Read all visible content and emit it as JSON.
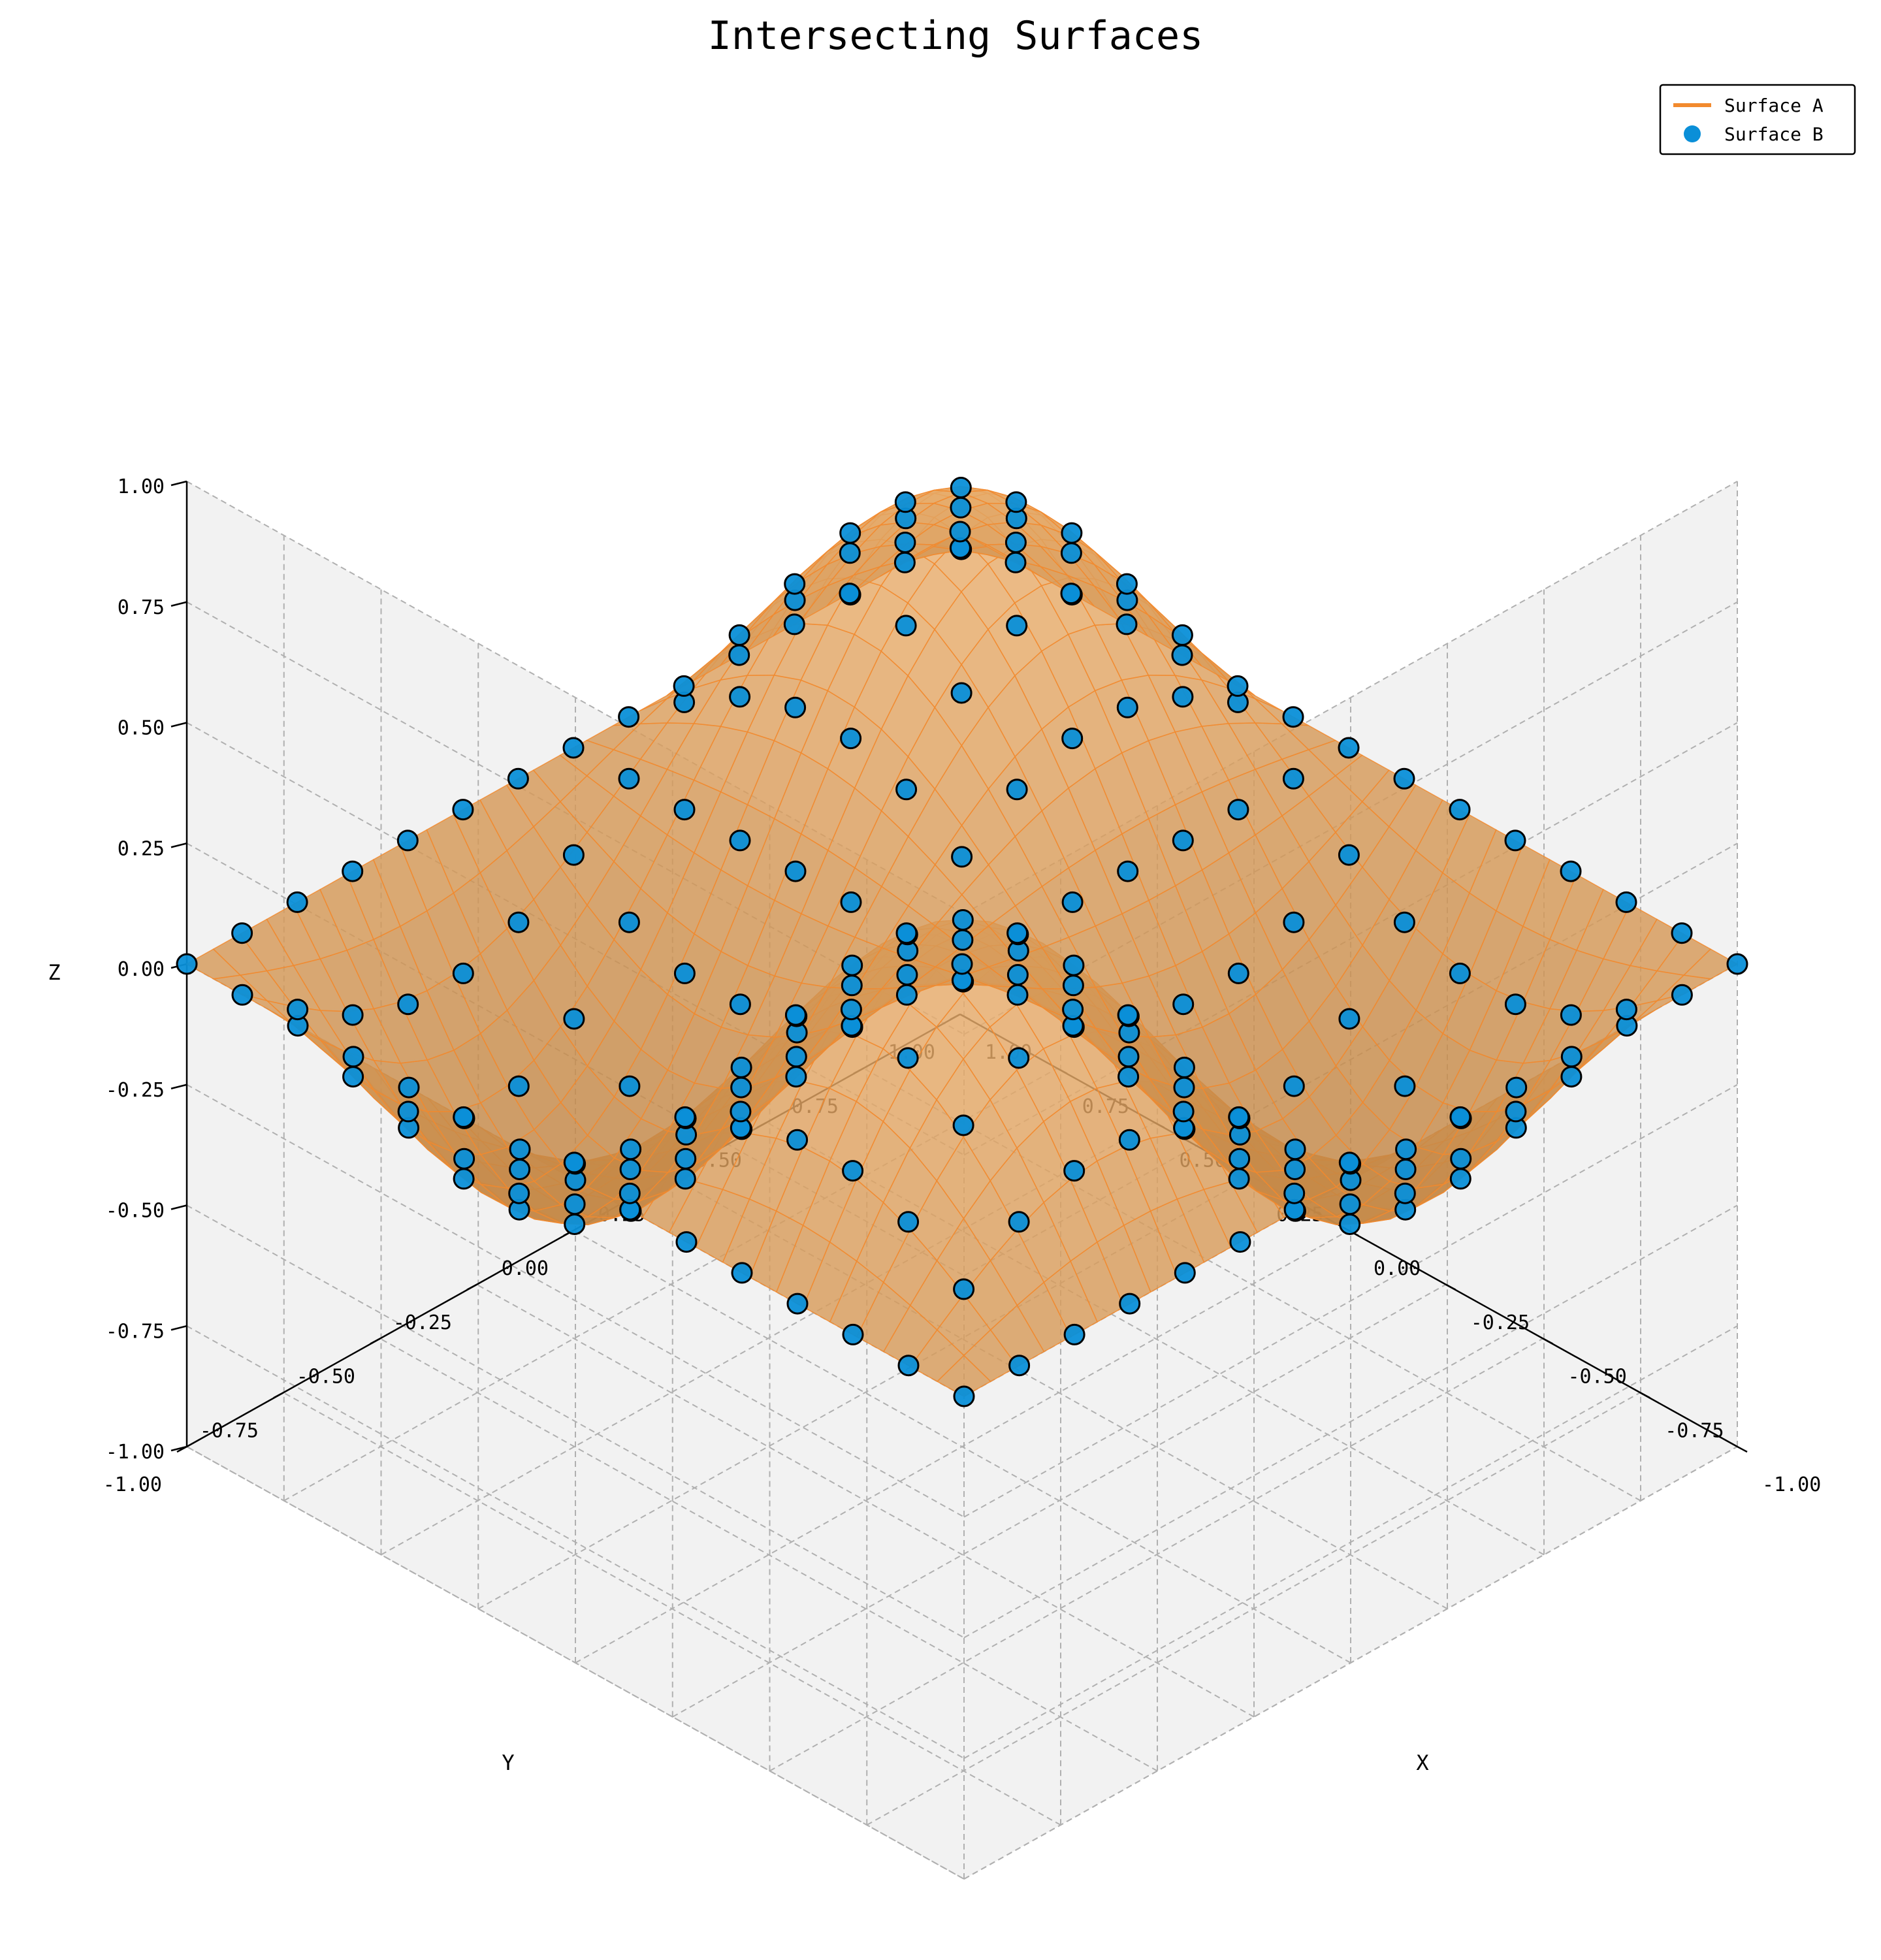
{
  "chart_data": {
    "type": "surface3d",
    "title": "Intersecting Surfaces",
    "xlabel": "X",
    "ylabel": "Y",
    "zlabel": "Z",
    "xlim": [
      -1,
      1
    ],
    "ylim": [
      -1,
      1
    ],
    "zlim": [
      -1,
      1
    ],
    "x_ticks": [
      "-1.00",
      "-0.75",
      "-0.50",
      "-0.25",
      "0.00",
      "0.25",
      "0.50",
      "0.75",
      "1.00"
    ],
    "y_ticks": [
      "-1.00",
      "-0.75",
      "-0.50",
      "-0.25",
      "0.00",
      "0.25",
      "0.50",
      "0.75",
      "1.00"
    ],
    "z_ticks": [
      "-1.00",
      "-0.75",
      "-0.50",
      "-0.25",
      "0.00",
      "0.25",
      "0.50",
      "0.75",
      "1.00"
    ],
    "grid": true,
    "legend_position": "top-right",
    "series": [
      {
        "name": "Surface A",
        "kind": "surface",
        "color": "#f28a2e",
        "facecolor": "#d49458",
        "function": "z = 0.5 * sin(pi*x) * sin(pi*y)",
        "x_range": [
          -1,
          1
        ],
        "y_range": [
          -1,
          1
        ],
        "grid_points": 30
      },
      {
        "name": "Surface B",
        "kind": "scatter",
        "color": "#0a8fd8",
        "function": "z = 0.5 * sin(pi*x) * sin(pi*y)",
        "x_range": [
          -1,
          1
        ],
        "y_range": [
          -1,
          1
        ],
        "grid_points": 15
      }
    ]
  }
}
